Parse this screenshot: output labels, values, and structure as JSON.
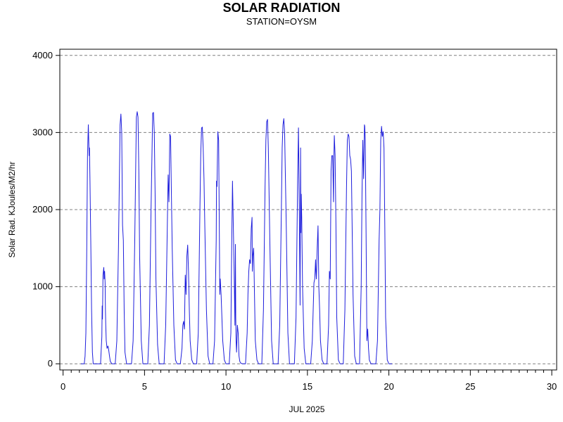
{
  "chart_data": {
    "type": "line",
    "title": "SOLAR RADIATION",
    "subtitle": "STATION=OYSM",
    "xlabel": "JUL 2025",
    "ylabel": "Solar Rad. KJoules/M2/hr",
    "xlim": [
      -0.2,
      30.3
    ],
    "ylim": [
      -80,
      4080
    ],
    "x_ticks": [
      0,
      5,
      10,
      15,
      20,
      25,
      30
    ],
    "x_tick_labels": [
      "0",
      "5",
      "10",
      "15",
      "20",
      "25",
      "30"
    ],
    "x_minor_step": 0.5,
    "y_ticks": [
      0,
      1000,
      2000,
      3000,
      4000
    ],
    "y_tick_labels": [
      "0",
      "1000",
      "2000",
      "3000",
      "4000"
    ],
    "grid": {
      "y": true,
      "style": "dashed"
    },
    "line_color": "#1f1fdc",
    "series": [
      {
        "x": [
          1.1,
          1.3,
          1.35,
          1.4,
          1.45,
          1.5,
          1.55,
          1.6,
          1.62,
          1.65,
          1.7,
          1.75,
          1.8,
          1.85,
          1.9,
          1.95,
          2.0,
          2.3,
          2.38,
          2.4,
          2.42,
          2.45,
          2.5,
          2.52,
          2.55,
          2.58,
          2.6,
          2.62,
          2.65,
          2.7,
          2.75,
          2.78,
          2.8,
          2.85,
          2.9,
          3.0,
          3.2,
          3.3,
          3.4,
          3.5,
          3.55,
          3.6,
          3.65,
          3.7,
          3.75,
          3.8,
          3.9,
          4.0,
          4.2,
          4.3,
          4.4,
          4.5,
          4.55,
          4.6,
          4.65,
          4.7,
          4.8,
          4.9,
          5.0,
          5.2,
          5.3,
          5.4,
          5.5,
          5.55,
          5.6,
          5.65,
          5.7,
          5.8,
          5.9,
          6.0,
          6.2,
          6.3,
          6.4,
          6.45,
          6.5,
          6.55,
          6.6,
          6.65,
          6.7,
          6.8,
          6.9,
          7.0,
          7.2,
          7.3,
          7.35,
          7.4,
          7.45,
          7.5,
          7.55,
          7.6,
          7.65,
          7.7,
          7.75,
          7.8,
          7.9,
          8.0,
          8.2,
          8.3,
          8.4,
          8.45,
          8.5,
          8.55,
          8.6,
          8.65,
          8.7,
          8.8,
          8.9,
          9.0,
          9.2,
          9.3,
          9.4,
          9.42,
          9.45,
          9.5,
          9.55,
          9.6,
          9.62,
          9.65,
          9.7,
          9.8,
          9.9,
          10.0,
          10.2,
          10.3,
          10.35,
          10.4,
          10.45,
          10.5,
          10.55,
          10.58,
          10.6,
          10.62,
          10.65,
          10.7,
          10.75,
          10.8,
          10.85,
          10.9,
          11.0,
          11.2,
          11.3,
          11.35,
          11.4,
          11.45,
          11.5,
          11.55,
          11.6,
          11.62,
          11.65,
          11.7,
          11.75,
          11.8,
          11.9,
          12.0,
          12.2,
          12.3,
          12.4,
          12.45,
          12.5,
          12.55,
          12.6,
          12.7,
          12.8,
          12.9,
          13.0,
          13.2,
          13.3,
          13.4,
          13.45,
          13.5,
          13.55,
          13.6,
          13.7,
          13.8,
          13.9,
          14.0,
          14.2,
          14.3,
          14.4,
          14.45,
          14.5,
          14.55,
          14.58,
          14.6,
          14.62,
          14.65,
          14.7,
          14.8,
          14.9,
          15.0,
          15.2,
          15.3,
          15.4,
          15.45,
          15.5,
          15.52,
          15.55,
          15.6,
          15.65,
          15.7,
          15.75,
          15.8,
          15.9,
          16.0,
          16.2,
          16.3,
          16.35,
          16.4,
          16.45,
          16.5,
          16.55,
          16.6,
          16.62,
          16.65,
          16.7,
          16.75,
          16.8,
          16.9,
          17.0,
          17.2,
          17.3,
          17.4,
          17.45,
          17.5,
          17.55,
          17.6,
          17.65,
          17.7,
          17.8,
          17.9,
          18.0,
          18.2,
          18.3,
          18.35,
          18.4,
          18.45,
          18.5,
          18.52,
          18.55,
          18.6,
          18.65,
          18.7,
          18.75,
          18.8,
          18.9,
          19.0,
          19.2,
          19.3,
          19.4,
          19.45,
          19.5,
          19.55,
          19.6,
          19.65,
          19.7,
          19.75,
          19.8,
          19.9,
          20.0,
          20.2
        ],
        "y": [
          0,
          0,
          100,
          400,
          1400,
          2700,
          3100,
          2700,
          2800,
          2400,
          1600,
          700,
          150,
          0,
          0,
          0,
          0,
          0,
          350,
          750,
          580,
          1150,
          1250,
          1100,
          1200,
          1050,
          700,
          500,
          300,
          200,
          230,
          210,
          180,
          100,
          30,
          0,
          0,
          300,
          1500,
          3100,
          3240,
          3000,
          1800,
          1600,
          700,
          150,
          0,
          0,
          0,
          300,
          1600,
          3200,
          3270,
          3200,
          2500,
          1400,
          300,
          0,
          0,
          0,
          500,
          2000,
          3250,
          3260,
          3000,
          2200,
          1100,
          250,
          0,
          0,
          0,
          500,
          1800,
          2450,
          2100,
          2980,
          2950,
          2200,
          1500,
          500,
          50,
          0,
          0,
          200,
          500,
          550,
          450,
          1150,
          900,
          1400,
          1540,
          1200,
          700,
          300,
          50,
          0,
          0,
          400,
          2000,
          2700,
          3060,
          3070,
          2800,
          2400,
          1800,
          700,
          100,
          0,
          0,
          300,
          1600,
          2370,
          2300,
          3010,
          2900,
          1500,
          900,
          1100,
          900,
          300,
          50,
          0,
          0,
          400,
          1500,
          2370,
          1800,
          1200,
          500,
          1550,
          600,
          300,
          150,
          500,
          400,
          100,
          30,
          10,
          0,
          0,
          400,
          900,
          1200,
          1350,
          1300,
          1750,
          1900,
          1200,
          1400,
          1500,
          900,
          300,
          50,
          0,
          0,
          700,
          2300,
          2900,
          3140,
          3170,
          2800,
          1500,
          300,
          0,
          0,
          0,
          500,
          2000,
          2800,
          3100,
          3180,
          3000,
          1800,
          400,
          0,
          0,
          0,
          600,
          2400,
          3060,
          2000,
          760,
          2800,
          1700,
          2200,
          1900,
          1000,
          200,
          0,
          0,
          0,
          300,
          1050,
          1100,
          1350,
          1200,
          1100,
          1500,
          1790,
          1000,
          700,
          300,
          50,
          0,
          0,
          500,
          1200,
          1100,
          2500,
          2700,
          2700,
          2100,
          2600,
          2960,
          2700,
          1800,
          600,
          50,
          0,
          0,
          700,
          2300,
          2900,
          2980,
          2950,
          2700,
          2650,
          2500,
          900,
          100,
          0,
          0,
          1000,
          2200,
          2900,
          2400,
          3100,
          3080,
          2900,
          1700,
          300,
          450,
          200,
          50,
          0,
          0,
          0,
          300,
          1600,
          2000,
          2900,
          3080,
          2950,
          3010,
          2800,
          1800,
          600,
          50,
          0,
          0
        ]
      }
    ]
  }
}
